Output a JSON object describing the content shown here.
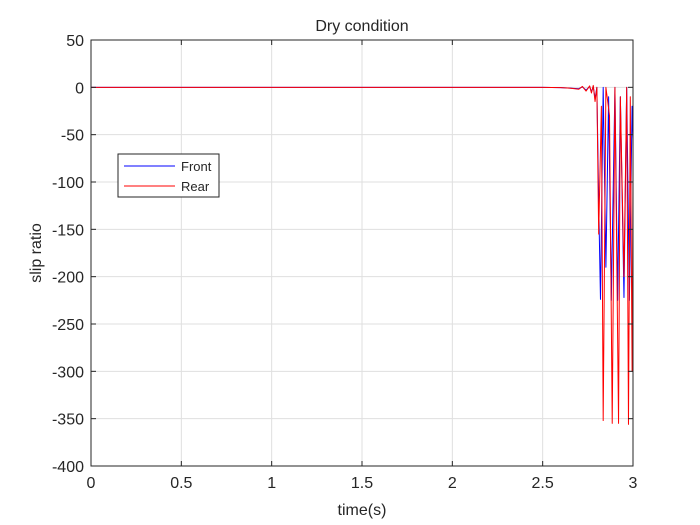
{
  "chart_data": {
    "type": "line",
    "title": "Dry condition",
    "xlabel": "time(s)",
    "ylabel": "slip ratio",
    "xlim": [
      0,
      3
    ],
    "ylim": [
      -400,
      50
    ],
    "xticks": [
      0,
      0.5,
      1,
      1.5,
      2,
      2.5,
      3
    ],
    "xtick_labels": [
      "0",
      "0.5",
      "1",
      "1.5",
      "2",
      "2.5",
      "3"
    ],
    "yticks": [
      50,
      0,
      -50,
      -100,
      -150,
      -200,
      -250,
      -300,
      -350,
      -400
    ],
    "ytick_labels": [
      "50",
      "0",
      "-50",
      "-100",
      "-150",
      "-200",
      "-250",
      "-300",
      "-350",
      "-400"
    ],
    "grid": true,
    "legend_position": "middle-left",
    "series": [
      {
        "name": "Front",
        "color": "#0000ff",
        "x": [
          0,
          2.5,
          2.6,
          2.65,
          2.7,
          2.72,
          2.74,
          2.76,
          2.77,
          2.78,
          2.79,
          2.8,
          2.81,
          2.82,
          2.835,
          2.85,
          2.865,
          2.88,
          2.9,
          2.915,
          2.93,
          2.95,
          2.965,
          2.98,
          2.995,
          3.0
        ],
        "y": [
          0,
          0,
          -0.3,
          -0.8,
          -1.5,
          0.5,
          -3,
          1,
          -5,
          1,
          -12,
          0,
          -120,
          -224,
          0,
          -190,
          -10,
          -225,
          0,
          -225,
          -10,
          -222,
          0,
          -225,
          -20,
          -55
        ]
      },
      {
        "name": "Rear",
        "color": "#ff0000",
        "x": [
          0,
          2.5,
          2.6,
          2.65,
          2.7,
          2.72,
          2.74,
          2.76,
          2.77,
          2.78,
          2.79,
          2.8,
          2.81,
          2.825,
          2.835,
          2.85,
          2.87,
          2.885,
          2.9,
          2.92,
          2.93,
          2.95,
          2.965,
          2.975,
          2.985,
          2.995,
          3.0
        ],
        "y": [
          0,
          0,
          -0.3,
          -0.8,
          -2,
          1,
          -4,
          1.5,
          -6,
          2,
          -15,
          0,
          -155,
          -20,
          -352,
          0,
          -30,
          -355,
          0,
          -355,
          -10,
          -200,
          0,
          -356,
          -10,
          -300,
          -95
        ]
      }
    ]
  }
}
